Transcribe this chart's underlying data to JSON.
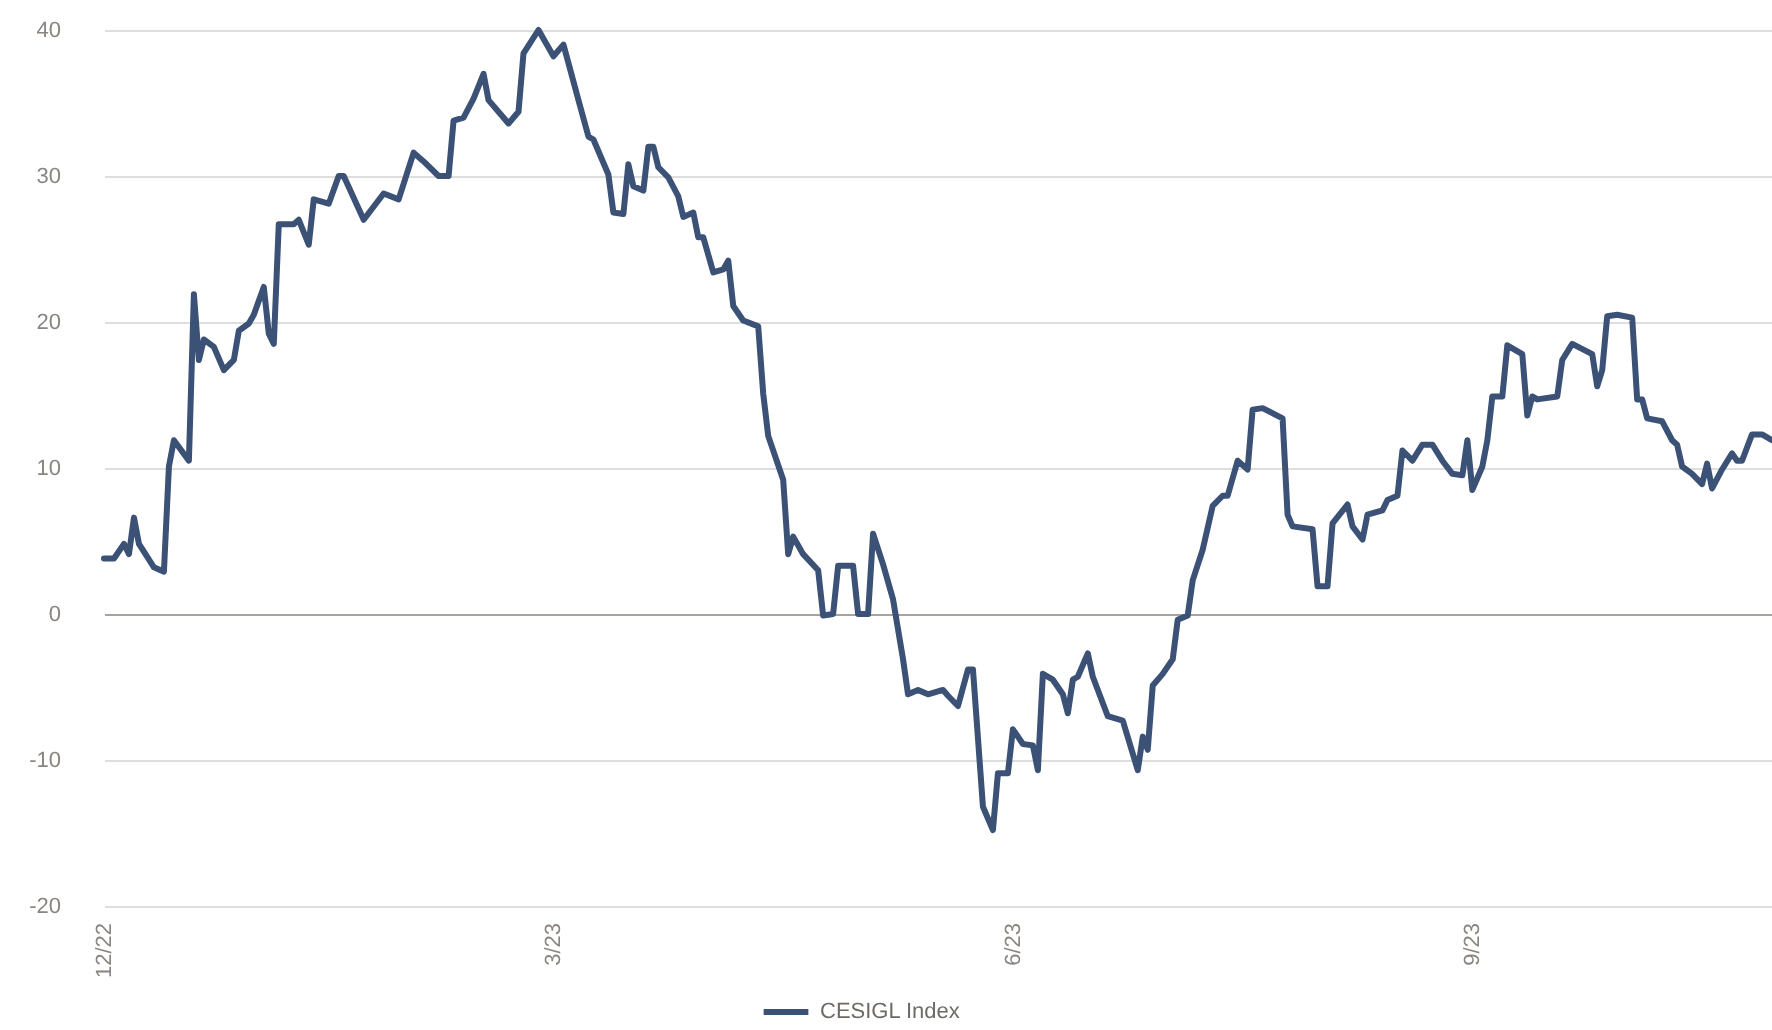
{
  "chart_data": {
    "type": "line",
    "x": [
      "2022-12-01",
      "2022-12-03",
      "2022-12-05",
      "2022-12-06",
      "2022-12-07",
      "2022-12-08",
      "2022-12-11",
      "2022-12-13",
      "2022-12-14",
      "2022-12-15",
      "2022-12-18",
      "2022-12-19",
      "2022-12-20",
      "2022-12-21",
      "2022-12-23",
      "2022-12-25",
      "2022-12-27",
      "2022-12-28",
      "2022-12-30",
      "2022-12-31",
      "2023-01-02",
      "2023-01-03",
      "2023-01-04",
      "2023-01-05",
      "2023-01-08",
      "2023-01-09",
      "2023-01-11",
      "2023-01-12",
      "2023-01-15",
      "2023-01-17",
      "2023-01-18",
      "2023-01-22",
      "2023-01-26",
      "2023-01-29",
      "2023-02-01",
      "2023-02-03",
      "2023-02-06",
      "2023-02-08",
      "2023-02-09",
      "2023-02-11",
      "2023-02-13",
      "2023-02-15",
      "2023-02-16",
      "2023-02-20",
      "2023-02-22",
      "2023-02-23",
      "2023-02-26",
      "2023-03-01",
      "2023-03-03",
      "2023-03-06",
      "2023-03-08",
      "2023-03-09",
      "2023-03-12",
      "2023-03-13",
      "2023-03-15",
      "2023-03-16",
      "2023-03-17",
      "2023-03-19",
      "2023-03-20",
      "2023-03-21",
      "2023-03-22",
      "2023-03-24",
      "2023-03-26",
      "2023-03-27",
      "2023-03-29",
      "2023-03-30",
      "2023-03-31",
      "2023-04-02",
      "2023-04-04",
      "2023-04-05",
      "2023-04-06",
      "2023-04-08",
      "2023-04-11",
      "2023-04-12",
      "2023-04-13",
      "2023-04-16",
      "2023-04-17",
      "2023-04-18",
      "2023-04-20",
      "2023-04-23",
      "2023-04-24",
      "2023-04-26",
      "2023-04-27",
      "2023-04-30",
      "2023-05-01",
      "2023-05-03",
      "2023-05-04",
      "2023-05-06",
      "2023-05-08",
      "2023-05-10",
      "2023-05-11",
      "2023-05-13",
      "2023-05-15",
      "2023-05-18",
      "2023-05-19",
      "2023-05-21",
      "2023-05-23",
      "2023-05-24",
      "2023-05-26",
      "2023-05-28",
      "2023-05-29",
      "2023-05-31",
      "2023-06-01",
      "2023-06-03",
      "2023-06-05",
      "2023-06-06",
      "2023-06-07",
      "2023-06-09",
      "2023-06-11",
      "2023-06-12",
      "2023-06-13",
      "2023-06-14",
      "2023-06-16",
      "2023-06-17",
      "2023-06-20",
      "2023-06-23",
      "2023-06-26",
      "2023-06-27",
      "2023-06-28",
      "2023-06-29",
      "2023-07-01",
      "2023-07-03",
      "2023-07-04",
      "2023-07-06",
      "2023-07-07",
      "2023-07-09",
      "2023-07-11",
      "2023-07-13",
      "2023-07-14",
      "2023-07-16",
      "2023-07-18",
      "2023-07-19",
      "2023-07-21",
      "2023-07-25",
      "2023-07-26",
      "2023-07-27",
      "2023-07-31",
      "2023-08-01",
      "2023-08-03",
      "2023-08-04",
      "2023-08-07",
      "2023-08-08",
      "2023-08-10",
      "2023-08-11",
      "2023-08-14",
      "2023-08-15",
      "2023-08-17",
      "2023-08-18",
      "2023-08-20",
      "2023-08-22",
      "2023-08-24",
      "2023-08-26",
      "2023-08-28",
      "2023-08-30",
      "2023-08-31",
      "2023-09-01",
      "2023-09-03",
      "2023-09-04",
      "2023-09-05",
      "2023-09-07",
      "2023-09-08",
      "2023-09-11",
      "2023-09-12",
      "2023-09-13",
      "2023-09-14",
      "2023-09-18",
      "2023-09-19",
      "2023-09-21",
      "2023-09-25",
      "2023-09-26",
      "2023-09-27",
      "2023-09-28",
      "2023-09-30",
      "2023-10-03",
      "2023-10-04",
      "2023-10-05",
      "2023-10-06",
      "2023-10-09",
      "2023-10-11",
      "2023-10-12",
      "2023-10-13",
      "2023-10-15",
      "2023-10-17",
      "2023-10-18",
      "2023-10-19",
      "2023-10-21",
      "2023-10-23",
      "2023-10-24",
      "2023-10-25",
      "2023-10-27",
      "2023-10-29",
      "2023-10-31"
    ],
    "series": [
      {
        "name": "CESIGL Index",
        "color": "#3b5176",
        "values": [
          3.8,
          3.8,
          4.8,
          4.1,
          6.6,
          4.8,
          3.2,
          2.9,
          10.1,
          11.9,
          10.5,
          21.9,
          17.4,
          18.8,
          18.3,
          16.7,
          17.4,
          19.4,
          19.9,
          20.5,
          22.4,
          19.2,
          18.5,
          26.7,
          26.7,
          27.0,
          25.3,
          28.4,
          28.1,
          30.0,
          30.0,
          27.0,
          28.8,
          28.4,
          31.6,
          31.0,
          30.0,
          30.0,
          33.8,
          34.0,
          35.3,
          37.0,
          35.2,
          33.6,
          34.4,
          38.4,
          40.0,
          38.2,
          39.0,
          35.2,
          32.7,
          32.5,
          30.1,
          27.5,
          27.4,
          30.8,
          29.3,
          29.0,
          32.0,
          32.0,
          30.6,
          29.9,
          28.6,
          27.2,
          27.5,
          25.8,
          25.8,
          23.4,
          23.6,
          24.2,
          21.1,
          20.1,
          19.7,
          15.1,
          12.2,
          9.2,
          4.1,
          5.3,
          4.1,
          3.0,
          -0.1,
          0,
          3.3,
          3.3,
          0,
          0,
          5.5,
          3.4,
          1.0,
          -3.1,
          -5.5,
          -5.2,
          -5.5,
          -5.2,
          -5.6,
          -6.3,
          -3.8,
          -3.8,
          -13.2,
          -14.8,
          -10.9,
          -10.9,
          -7.9,
          -8.9,
          -9.0,
          -10.7,
          -4.1,
          -4.5,
          -5.5,
          -6.8,
          -4.5,
          -4.3,
          -2.7,
          -4.3,
          -7.0,
          -7.3,
          -10.7,
          -8.4,
          -9.3,
          -4.9,
          -4.1,
          -3.1,
          -0.4,
          -0.1,
          2.3,
          4.4,
          7.4,
          8.1,
          8.1,
          10.5,
          9.9,
          14.0,
          14.1,
          13.4,
          6.8,
          6.0,
          5.8,
          1.9,
          1.9,
          6.2,
          7.5,
          6.0,
          5.1,
          6.8,
          7.1,
          7.8,
          8.1,
          11.2,
          10.5,
          11.6,
          11.6,
          10.5,
          9.6,
          9.5,
          11.9,
          8.5,
          10.1,
          11.9,
          14.9,
          14.9,
          18.4,
          17.8,
          13.6,
          14.9,
          14.7,
          14.9,
          17.4,
          18.5,
          17.8,
          15.6,
          16.7,
          20.4,
          20.5,
          20.3,
          14.7,
          14.7,
          13.4,
          13.2,
          11.9,
          11.6,
          10.1,
          9.6,
          8.9,
          10.3,
          8.6,
          9.9,
          11.0,
          10.5,
          10.5,
          12.3,
          12.3,
          11.9
        ]
      }
    ],
    "xlim": [
      "2022-12-01",
      "2023-10-31"
    ],
    "xticks": [
      {
        "value": "2022-12-01",
        "label": "12/22"
      },
      {
        "value": "2023-03-01",
        "label": "3/23"
      },
      {
        "value": "2023-06-01",
        "label": "6/23"
      },
      {
        "value": "2023-09-01",
        "label": "9/23"
      }
    ],
    "ylim": [
      -20,
      40
    ],
    "yticks": [
      -20,
      -10,
      0,
      10,
      20,
      30,
      40
    ],
    "grid": "y",
    "legend": "bottom"
  }
}
